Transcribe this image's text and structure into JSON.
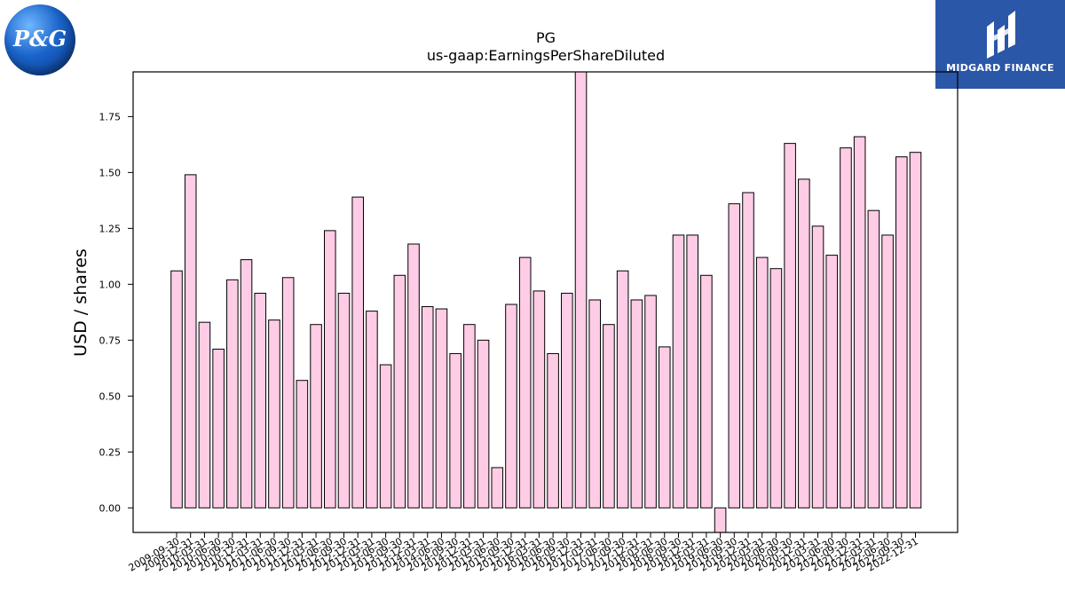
{
  "logos": {
    "left_logo_text": "P&G",
    "right_logo_text": "MIDGARD FINANCE"
  },
  "chart_data": {
    "type": "bar",
    "title": "PG",
    "subtitle": "us-gaap:EarningsPerShareDiluted",
    "xlabel": "",
    "ylabel": "USD / shares",
    "ylim": [
      -0.11,
      1.95
    ],
    "yticks": [
      0.0,
      0.25,
      0.5,
      0.75,
      1.0,
      1.25,
      1.5,
      1.75
    ],
    "ytick_labels": [
      "0.00",
      "0.25",
      "0.50",
      "0.75",
      "1.00",
      "1.25",
      "1.50",
      "1.75"
    ],
    "grid": false,
    "bar_color": "#ffcce6",
    "bar_edge_color": "#000000",
    "categories": [
      "2009-09-30",
      "2009-12-31",
      "2010-03-31",
      "2010-06-30",
      "2010-09-30",
      "2010-12-31",
      "2011-03-31",
      "2011-06-30",
      "2011-09-30",
      "2011-12-31",
      "2012-03-31",
      "2012-06-30",
      "2012-09-30",
      "2012-12-31",
      "2013-03-31",
      "2013-06-30",
      "2013-09-30",
      "2013-12-31",
      "2014-03-31",
      "2014-06-30",
      "2014-09-30",
      "2014-12-31",
      "2015-03-31",
      "2015-06-30",
      "2015-09-30",
      "2015-12-31",
      "2016-03-31",
      "2016-06-30",
      "2016-09-30",
      "2016-12-31",
      "2017-03-31",
      "2017-06-30",
      "2017-09-30",
      "2017-12-31",
      "2018-03-31",
      "2018-06-30",
      "2018-09-30",
      "2018-12-31",
      "2019-03-31",
      "2019-06-30",
      "2019-09-30",
      "2019-12-31",
      "2020-03-31",
      "2020-06-30",
      "2020-09-30",
      "2020-12-31",
      "2021-03-31",
      "2021-06-30",
      "2021-09-30",
      "2021-12-31",
      "2022-03-31",
      "2022-06-30",
      "2022-09-30",
      "2022-12-31"
    ],
    "values": [
      1.06,
      1.49,
      0.83,
      0.71,
      1.02,
      1.11,
      0.96,
      0.84,
      1.03,
      0.57,
      0.82,
      1.24,
      0.96,
      1.39,
      0.88,
      0.64,
      1.04,
      1.18,
      0.9,
      0.89,
      0.69,
      0.82,
      0.75,
      0.18,
      0.91,
      1.12,
      0.97,
      0.69,
      0.96,
      1.95,
      0.93,
      0.82,
      1.06,
      0.93,
      0.95,
      0.72,
      1.22,
      1.22,
      1.04,
      -0.11,
      1.36,
      1.41,
      1.12,
      1.07,
      1.63,
      1.47,
      1.26,
      1.13,
      1.61,
      1.66,
      1.33,
      1.22,
      1.57,
      1.59
    ]
  }
}
